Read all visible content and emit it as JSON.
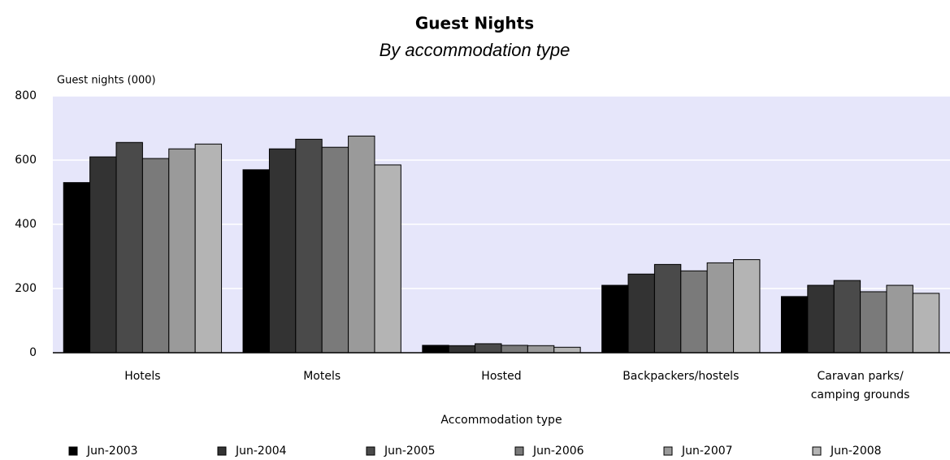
{
  "chart_data": {
    "type": "bar",
    "title": "Guest Nights",
    "subtitle": "By accommodation type",
    "y_label": "Guest nights (000)",
    "x_label": "Accommodation type",
    "categories": [
      "Hotels",
      "Motels",
      "Hosted",
      "Backpackers/hostels",
      "Caravan parks/ camping grounds"
    ],
    "series": [
      {
        "name": "Jun-2003",
        "color": "#000000",
        "values": [
          530,
          570,
          23,
          210,
          175
        ]
      },
      {
        "name": "Jun-2004",
        "color": "#333333",
        "values": [
          610,
          635,
          22,
          245,
          210
        ]
      },
      {
        "name": "Jun-2005",
        "color": "#4a4a4a",
        "values": [
          655,
          665,
          28,
          275,
          225
        ]
      },
      {
        "name": "Jun-2006",
        "color": "#7a7a7a",
        "values": [
          605,
          640,
          23,
          255,
          190
        ]
      },
      {
        "name": "Jun-2007",
        "color": "#9a9a9a",
        "values": [
          635,
          675,
          22,
          280,
          210
        ]
      },
      {
        "name": "Jun-2008",
        "color": "#b4b4b4",
        "values": [
          650,
          585,
          17,
          290,
          185
        ]
      }
    ],
    "ylim": [
      0,
      800
    ],
    "yticks": [
      0,
      200,
      400,
      600,
      800
    ],
    "grid": true,
    "legend": "bottom"
  }
}
